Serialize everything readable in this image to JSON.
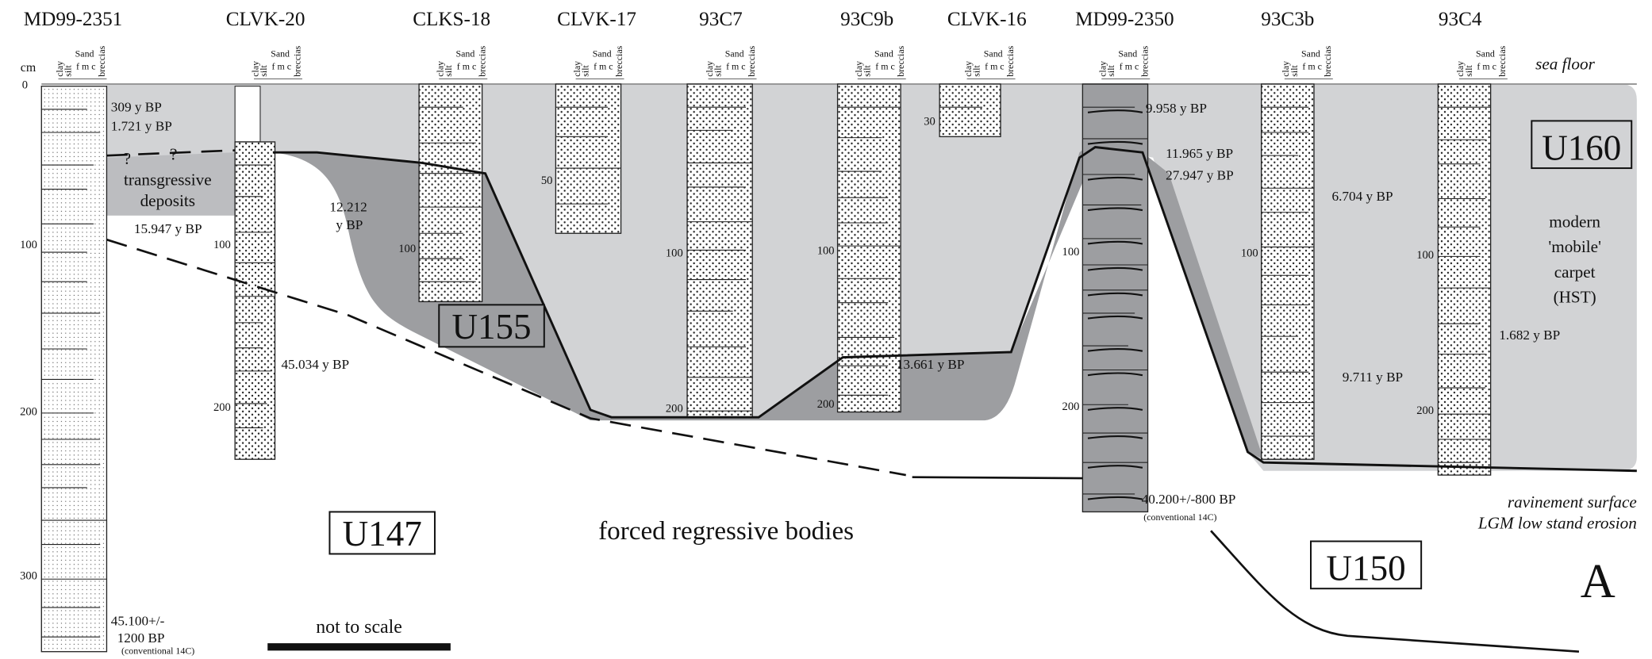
{
  "cores": [
    "MD99-2351",
    "CLVK-20",
    "CLKS-18",
    "CLVK-17",
    "93C7",
    "93C9b",
    "CLVK-16",
    "MD99-2350",
    "93C3b",
    "93C4"
  ],
  "grain_scale": [
    "clay",
    "silt",
    "Sand",
    "f m c",
    "breccias"
  ],
  "depth_axis": {
    "unit": "cm",
    "ticks": [
      "0",
      "100",
      "200",
      "300"
    ]
  },
  "core_depths": [
    "100",
    "200",
    "100",
    "50",
    "100",
    "200",
    "100",
    "200",
    "30",
    "100",
    "200",
    "100",
    "100",
    "200"
  ],
  "dates": [
    "309 y BP",
    "1.721 y BP",
    "15.947 y BP",
    "12.212",
    "y BP",
    "45.034 y BP",
    "45.100+/-",
    "1200 BP",
    "(conventional 14C)",
    "13.661 y BP",
    "9.958 y BP",
    "11.965 y BP",
    "27.947 y BP",
    "40.200+/-800 BP",
    "(conventional 14C)",
    "6.704 y BP",
    "9.711 y BP",
    "1.682 y BP"
  ],
  "units": [
    "U160",
    "U155",
    "U147",
    "U150"
  ],
  "annotations": {
    "sea_floor": "sea floor",
    "question": "?",
    "transgressive": [
      "transgressive",
      "deposits"
    ],
    "modern_carpet": [
      "modern",
      "'mobile'",
      "carpet",
      "(HST)"
    ],
    "forced_regressive": "forced regressive bodies",
    "ravinement": [
      "ravinement surface",
      "LGM low stand erosion"
    ],
    "not_to_scale": "not to scale",
    "panel": "A"
  }
}
